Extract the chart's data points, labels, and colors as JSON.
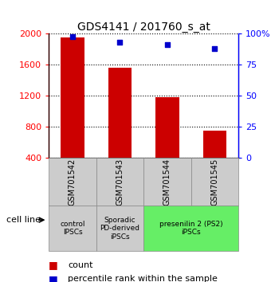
{
  "title": "GDS4141 / 201760_s_at",
  "samples": [
    "GSM701542",
    "GSM701543",
    "GSM701544",
    "GSM701545"
  ],
  "counts": [
    1950,
    1560,
    1180,
    750
  ],
  "percentiles": [
    98,
    93,
    91,
    88
  ],
  "ylim_left": [
    400,
    2000
  ],
  "ylim_right": [
    0,
    100
  ],
  "yticks_left": [
    400,
    800,
    1200,
    1600,
    2000
  ],
  "yticks_right": [
    0,
    25,
    50,
    75,
    100
  ],
  "yticklabels_right": [
    "0",
    "25",
    "50",
    "75",
    "100%"
  ],
  "bar_color": "#cc0000",
  "marker_color": "#0000cc",
  "bar_width": 0.5,
  "groups": [
    {
      "label": "control\nIPSCs",
      "cols": 1,
      "color": "#cccccc"
    },
    {
      "label": "Sporadic\nPD-derived\niPSCs",
      "cols": 1,
      "color": "#cccccc"
    },
    {
      "label": "presenilin 2 (PS2)\niPSCs",
      "cols": 2,
      "color": "#66ee66"
    }
  ],
  "cell_line_label": "cell line",
  "legend_count_label": "count",
  "legend_percentile_label": "percentile rank within the sample",
  "bg_color": "#ffffff"
}
